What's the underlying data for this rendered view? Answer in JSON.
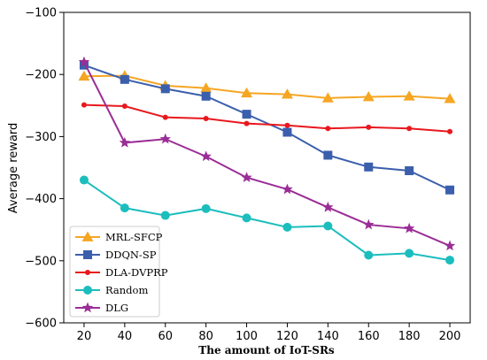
{
  "chart_data": {
    "type": "line",
    "title": "",
    "xlabel": "The amount of IoT-SRs",
    "ylabel": "Average reward",
    "x": [
      20,
      40,
      60,
      80,
      100,
      120,
      140,
      160,
      180,
      200
    ],
    "xlim": [
      10,
      210
    ],
    "ylim": [
      -600,
      -100
    ],
    "xticks": [
      20,
      40,
      60,
      80,
      100,
      120,
      140,
      160,
      180,
      200
    ],
    "yticks": [
      -100,
      -200,
      -300,
      -400,
      -500,
      -600
    ],
    "grid": false,
    "legend_position": "lower-left",
    "series": [
      {
        "name": "MRL-SFCP",
        "color": "#f5a623",
        "marker": "triangle",
        "values": [
          -203,
          -202,
          -218,
          -222,
          -230,
          -232,
          -238,
          -236,
          -235,
          -239
        ]
      },
      {
        "name": "DDQN-SP",
        "color": "#3b5fad",
        "marker": "square",
        "values": [
          -185,
          -208,
          -223,
          -235,
          -264,
          -293,
          -330,
          -349,
          -355,
          -386
        ]
      },
      {
        "name": "DLA-DVPRP",
        "color": "#e8181e",
        "marker": "circle-small",
        "values": [
          -249,
          -251,
          -269,
          -271,
          -279,
          -282,
          -287,
          -285,
          -287,
          -292
        ]
      },
      {
        "name": "Random",
        "color": "#1cbdbd",
        "marker": "circle",
        "values": [
          -370,
          -415,
          -427,
          -416,
          -431,
          -446,
          -444,
          -491,
          -488,
          -499
        ]
      },
      {
        "name": "DLG",
        "color": "#9b2d96",
        "marker": "star",
        "values": [
          -180,
          -310,
          -304,
          -332,
          -366,
          -385,
          -414,
          -442,
          -448,
          -476
        ]
      }
    ]
  }
}
